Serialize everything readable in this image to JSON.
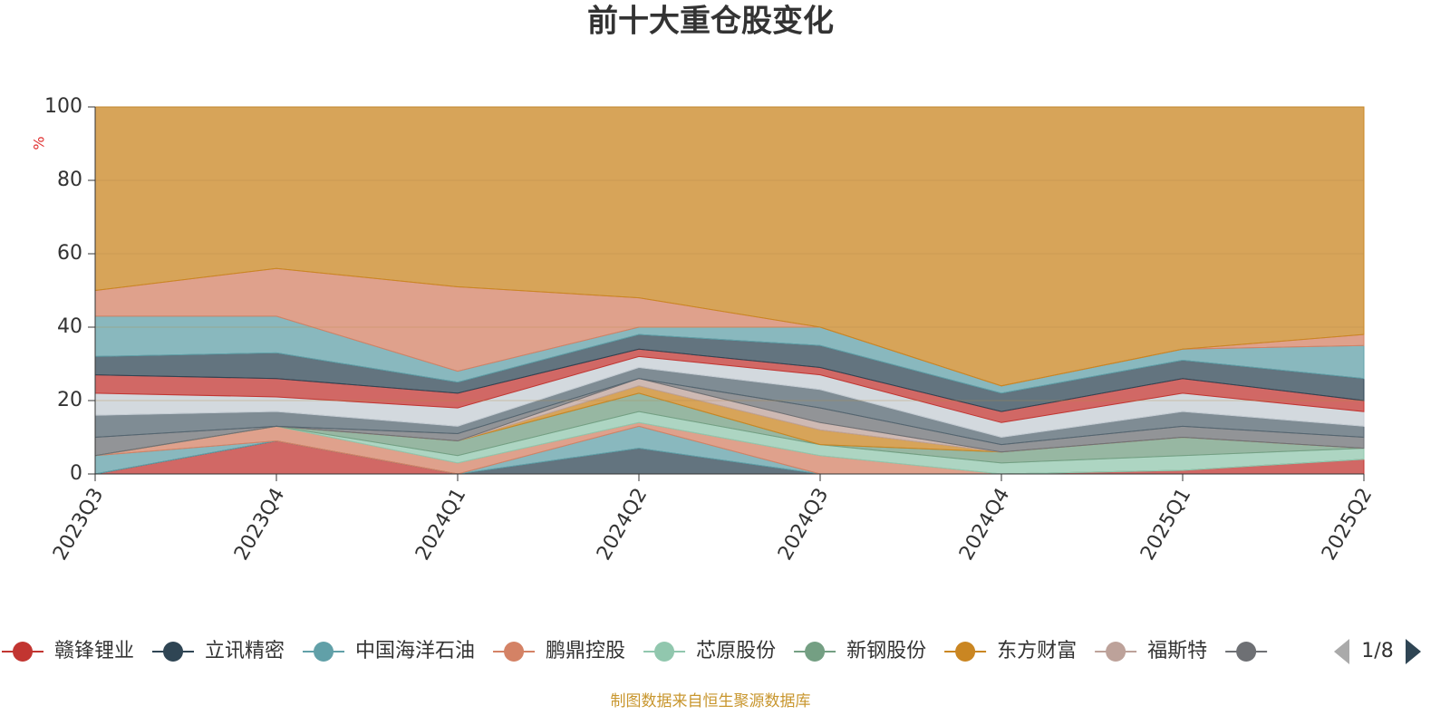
{
  "chart_data": {
    "type": "stacked-area",
    "title": "前十大重仓股变化",
    "y_axis_label": "%",
    "categories": [
      "2023Q3",
      "2023Q4",
      "2024Q1",
      "2024Q2",
      "2024Q3",
      "2024Q4",
      "2025Q1",
      "2025Q2"
    ],
    "ylim": [
      0,
      100
    ],
    "yticks": [
      0,
      20,
      40,
      60,
      80,
      100
    ],
    "grid": true,
    "legend_page": "1/8",
    "footer": "制图数据来自恒生聚源数据库",
    "series": [
      {
        "name": "赣锋锂业",
        "color": "#c23531",
        "values": [
          0,
          9,
          0,
          0,
          0,
          0,
          1,
          4
        ]
      },
      {
        "name": "立讯精密",
        "color": "#2f4554",
        "values": [
          0,
          0,
          0,
          7,
          0,
          0,
          0,
          0
        ]
      },
      {
        "name": "中国海洋石油",
        "color": "#61a0a8",
        "values": [
          5,
          0,
          0,
          6,
          0,
          0,
          0,
          0
        ]
      },
      {
        "name": "鹏鼎控股",
        "color": "#d48265",
        "values": [
          0,
          4,
          3,
          1,
          5,
          0,
          0,
          0
        ]
      },
      {
        "name": "芯原股份",
        "color": "#91c7ae",
        "values": [
          0,
          0,
          2,
          3,
          3,
          3,
          4,
          3
        ]
      },
      {
        "name": "新钢股份",
        "color": "#749f83",
        "values": [
          0,
          0,
          4,
          5,
          0,
          3,
          5,
          0
        ]
      },
      {
        "name": "东方财富",
        "color": "#ca8622",
        "values": [
          0,
          0,
          0,
          2,
          4,
          0,
          0,
          0
        ]
      },
      {
        "name": "福斯特",
        "color": "#bda29a",
        "values": [
          0,
          0,
          0,
          2,
          2,
          0,
          0,
          0
        ]
      },
      {
        "color": "#6e7074",
        "values": [
          5,
          0,
          2,
          0,
          4,
          2,
          3,
          3
        ]
      },
      {
        "color": "#546570",
        "values": [
          6,
          4,
          2,
          3,
          5,
          2,
          4,
          3
        ]
      },
      {
        "color": "#c4ccd3",
        "values": [
          6,
          4,
          5,
          3,
          4,
          4,
          5,
          4
        ]
      },
      {
        "color": "#c23531",
        "values": [
          5,
          5,
          4,
          2,
          2,
          3,
          4,
          3
        ]
      },
      {
        "color": "#2f4554",
        "values": [
          5,
          7,
          3,
          4,
          6,
          5,
          5,
          6
        ]
      },
      {
        "color": "#61a0a8",
        "values": [
          11,
          10,
          3,
          2,
          5,
          2,
          3,
          9
        ]
      },
      {
        "color": "#d48265",
        "values": [
          7,
          13,
          23,
          8,
          0,
          0,
          0,
          3
        ]
      },
      {
        "color": "#ca8622",
        "values": [
          50,
          44,
          49,
          52,
          60,
          76,
          66,
          62
        ]
      }
    ]
  }
}
